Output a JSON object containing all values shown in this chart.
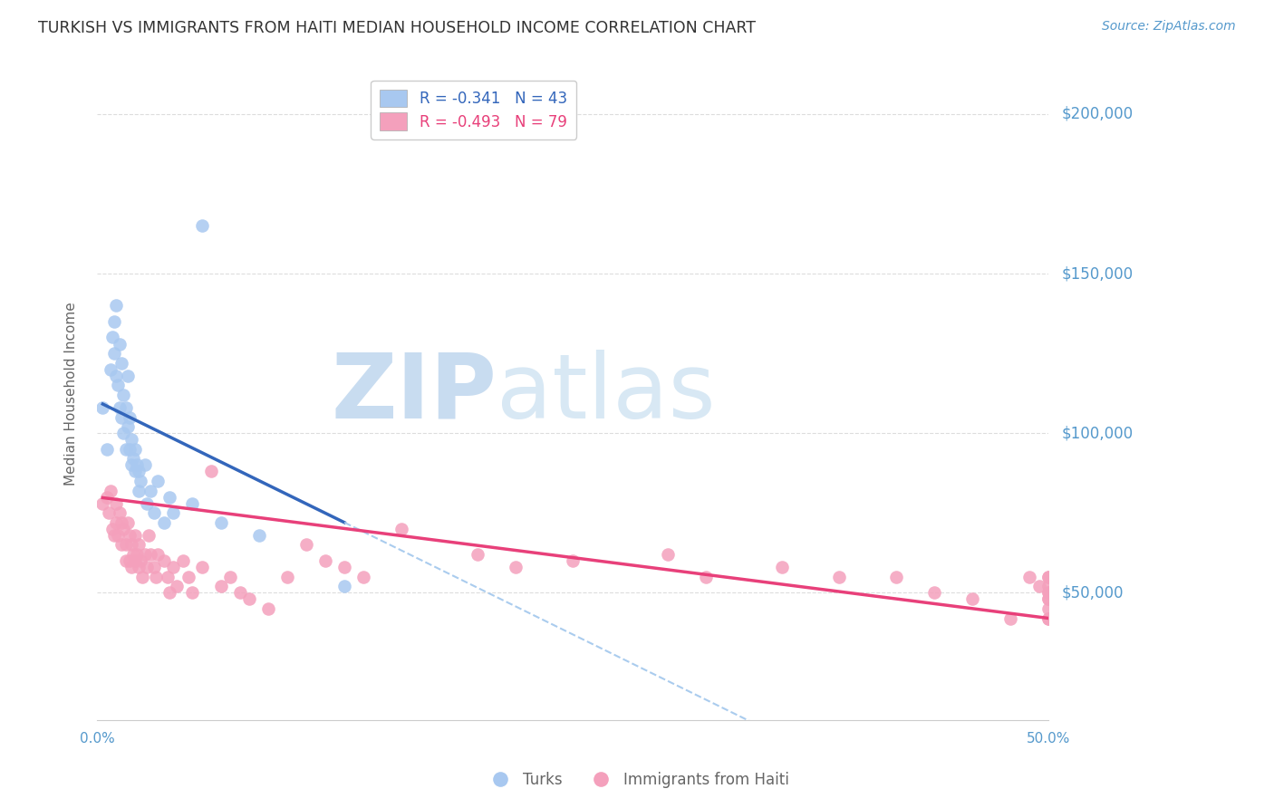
{
  "title": "TURKISH VS IMMIGRANTS FROM HAITI MEDIAN HOUSEHOLD INCOME CORRELATION CHART",
  "source_text": "Source: ZipAtlas.com",
  "ylabel": "Median Household Income",
  "xmin": 0.0,
  "xmax": 0.5,
  "ymin": 10000,
  "ymax": 215000,
  "yticks": [
    50000,
    100000,
    150000,
    200000
  ],
  "ytick_labels": [
    "$50,000",
    "$100,000",
    "$150,000",
    "$200,000"
  ],
  "xticks": [
    0.0,
    0.1,
    0.2,
    0.3,
    0.4,
    0.5
  ],
  "xtick_labels": [
    "0.0%",
    "",
    "",
    "",
    "",
    "50.0%"
  ],
  "watermark_zip": "ZIP",
  "watermark_atlas": "atlas",
  "legend_turks_label": "Turks",
  "legend_haiti_label": "Immigrants from Haiti",
  "turks_R": "-0.341",
  "turks_N": "43",
  "haiti_R": "-0.493",
  "haiti_N": "79",
  "blue_scatter_color": "#A8C8F0",
  "pink_scatter_color": "#F4A0BC",
  "blue_line_color": "#3366BB",
  "pink_line_color": "#E8407A",
  "blue_dash_color": "#AACCEE",
  "title_color": "#333333",
  "axis_label_color": "#666666",
  "tick_label_color": "#5599CC",
  "watermark_zip_color": "#C8DCF0",
  "watermark_atlas_color": "#D8E8F4",
  "background_color": "#FFFFFF",
  "grid_color": "#DDDDDD",
  "turks_x": [
    0.003,
    0.005,
    0.007,
    0.008,
    0.009,
    0.009,
    0.01,
    0.01,
    0.011,
    0.012,
    0.012,
    0.013,
    0.013,
    0.014,
    0.014,
    0.015,
    0.015,
    0.016,
    0.016,
    0.017,
    0.017,
    0.018,
    0.018,
    0.019,
    0.02,
    0.02,
    0.021,
    0.022,
    0.022,
    0.023,
    0.025,
    0.026,
    0.028,
    0.03,
    0.032,
    0.035,
    0.038,
    0.04,
    0.05,
    0.055,
    0.065,
    0.085,
    0.13
  ],
  "turks_y": [
    108000,
    95000,
    120000,
    130000,
    135000,
    125000,
    140000,
    118000,
    115000,
    128000,
    108000,
    122000,
    105000,
    112000,
    100000,
    108000,
    95000,
    118000,
    102000,
    105000,
    95000,
    98000,
    90000,
    92000,
    95000,
    88000,
    90000,
    88000,
    82000,
    85000,
    90000,
    78000,
    82000,
    75000,
    85000,
    72000,
    80000,
    75000,
    78000,
    165000,
    72000,
    68000,
    52000
  ],
  "haiti_x": [
    0.003,
    0.005,
    0.006,
    0.007,
    0.008,
    0.009,
    0.01,
    0.01,
    0.011,
    0.012,
    0.013,
    0.013,
    0.014,
    0.015,
    0.015,
    0.016,
    0.017,
    0.017,
    0.018,
    0.018,
    0.019,
    0.02,
    0.02,
    0.021,
    0.022,
    0.022,
    0.023,
    0.024,
    0.025,
    0.026,
    0.027,
    0.028,
    0.03,
    0.031,
    0.032,
    0.035,
    0.037,
    0.038,
    0.04,
    0.042,
    0.045,
    0.048,
    0.05,
    0.055,
    0.06,
    0.065,
    0.07,
    0.075,
    0.08,
    0.09,
    0.1,
    0.11,
    0.12,
    0.13,
    0.14,
    0.16,
    0.2,
    0.22,
    0.25,
    0.3,
    0.32,
    0.36,
    0.39,
    0.42,
    0.44,
    0.46,
    0.48,
    0.49,
    0.495,
    0.5,
    0.5,
    0.5,
    0.5,
    0.5,
    0.5,
    0.5,
    0.5,
    0.5,
    0.5
  ],
  "haiti_y": [
    78000,
    80000,
    75000,
    82000,
    70000,
    68000,
    78000,
    72000,
    68000,
    75000,
    72000,
    65000,
    70000,
    65000,
    60000,
    72000,
    68000,
    60000,
    65000,
    58000,
    62000,
    68000,
    60000,
    62000,
    65000,
    58000,
    60000,
    55000,
    62000,
    58000,
    68000,
    62000,
    58000,
    55000,
    62000,
    60000,
    55000,
    50000,
    58000,
    52000,
    60000,
    55000,
    50000,
    58000,
    88000,
    52000,
    55000,
    50000,
    48000,
    45000,
    55000,
    65000,
    60000,
    58000,
    55000,
    70000,
    62000,
    58000,
    60000,
    62000,
    55000,
    58000,
    55000,
    55000,
    50000,
    48000,
    42000,
    55000,
    52000,
    50000,
    55000,
    52000,
    48000,
    45000,
    42000,
    55000,
    50000,
    48000,
    42000
  ]
}
